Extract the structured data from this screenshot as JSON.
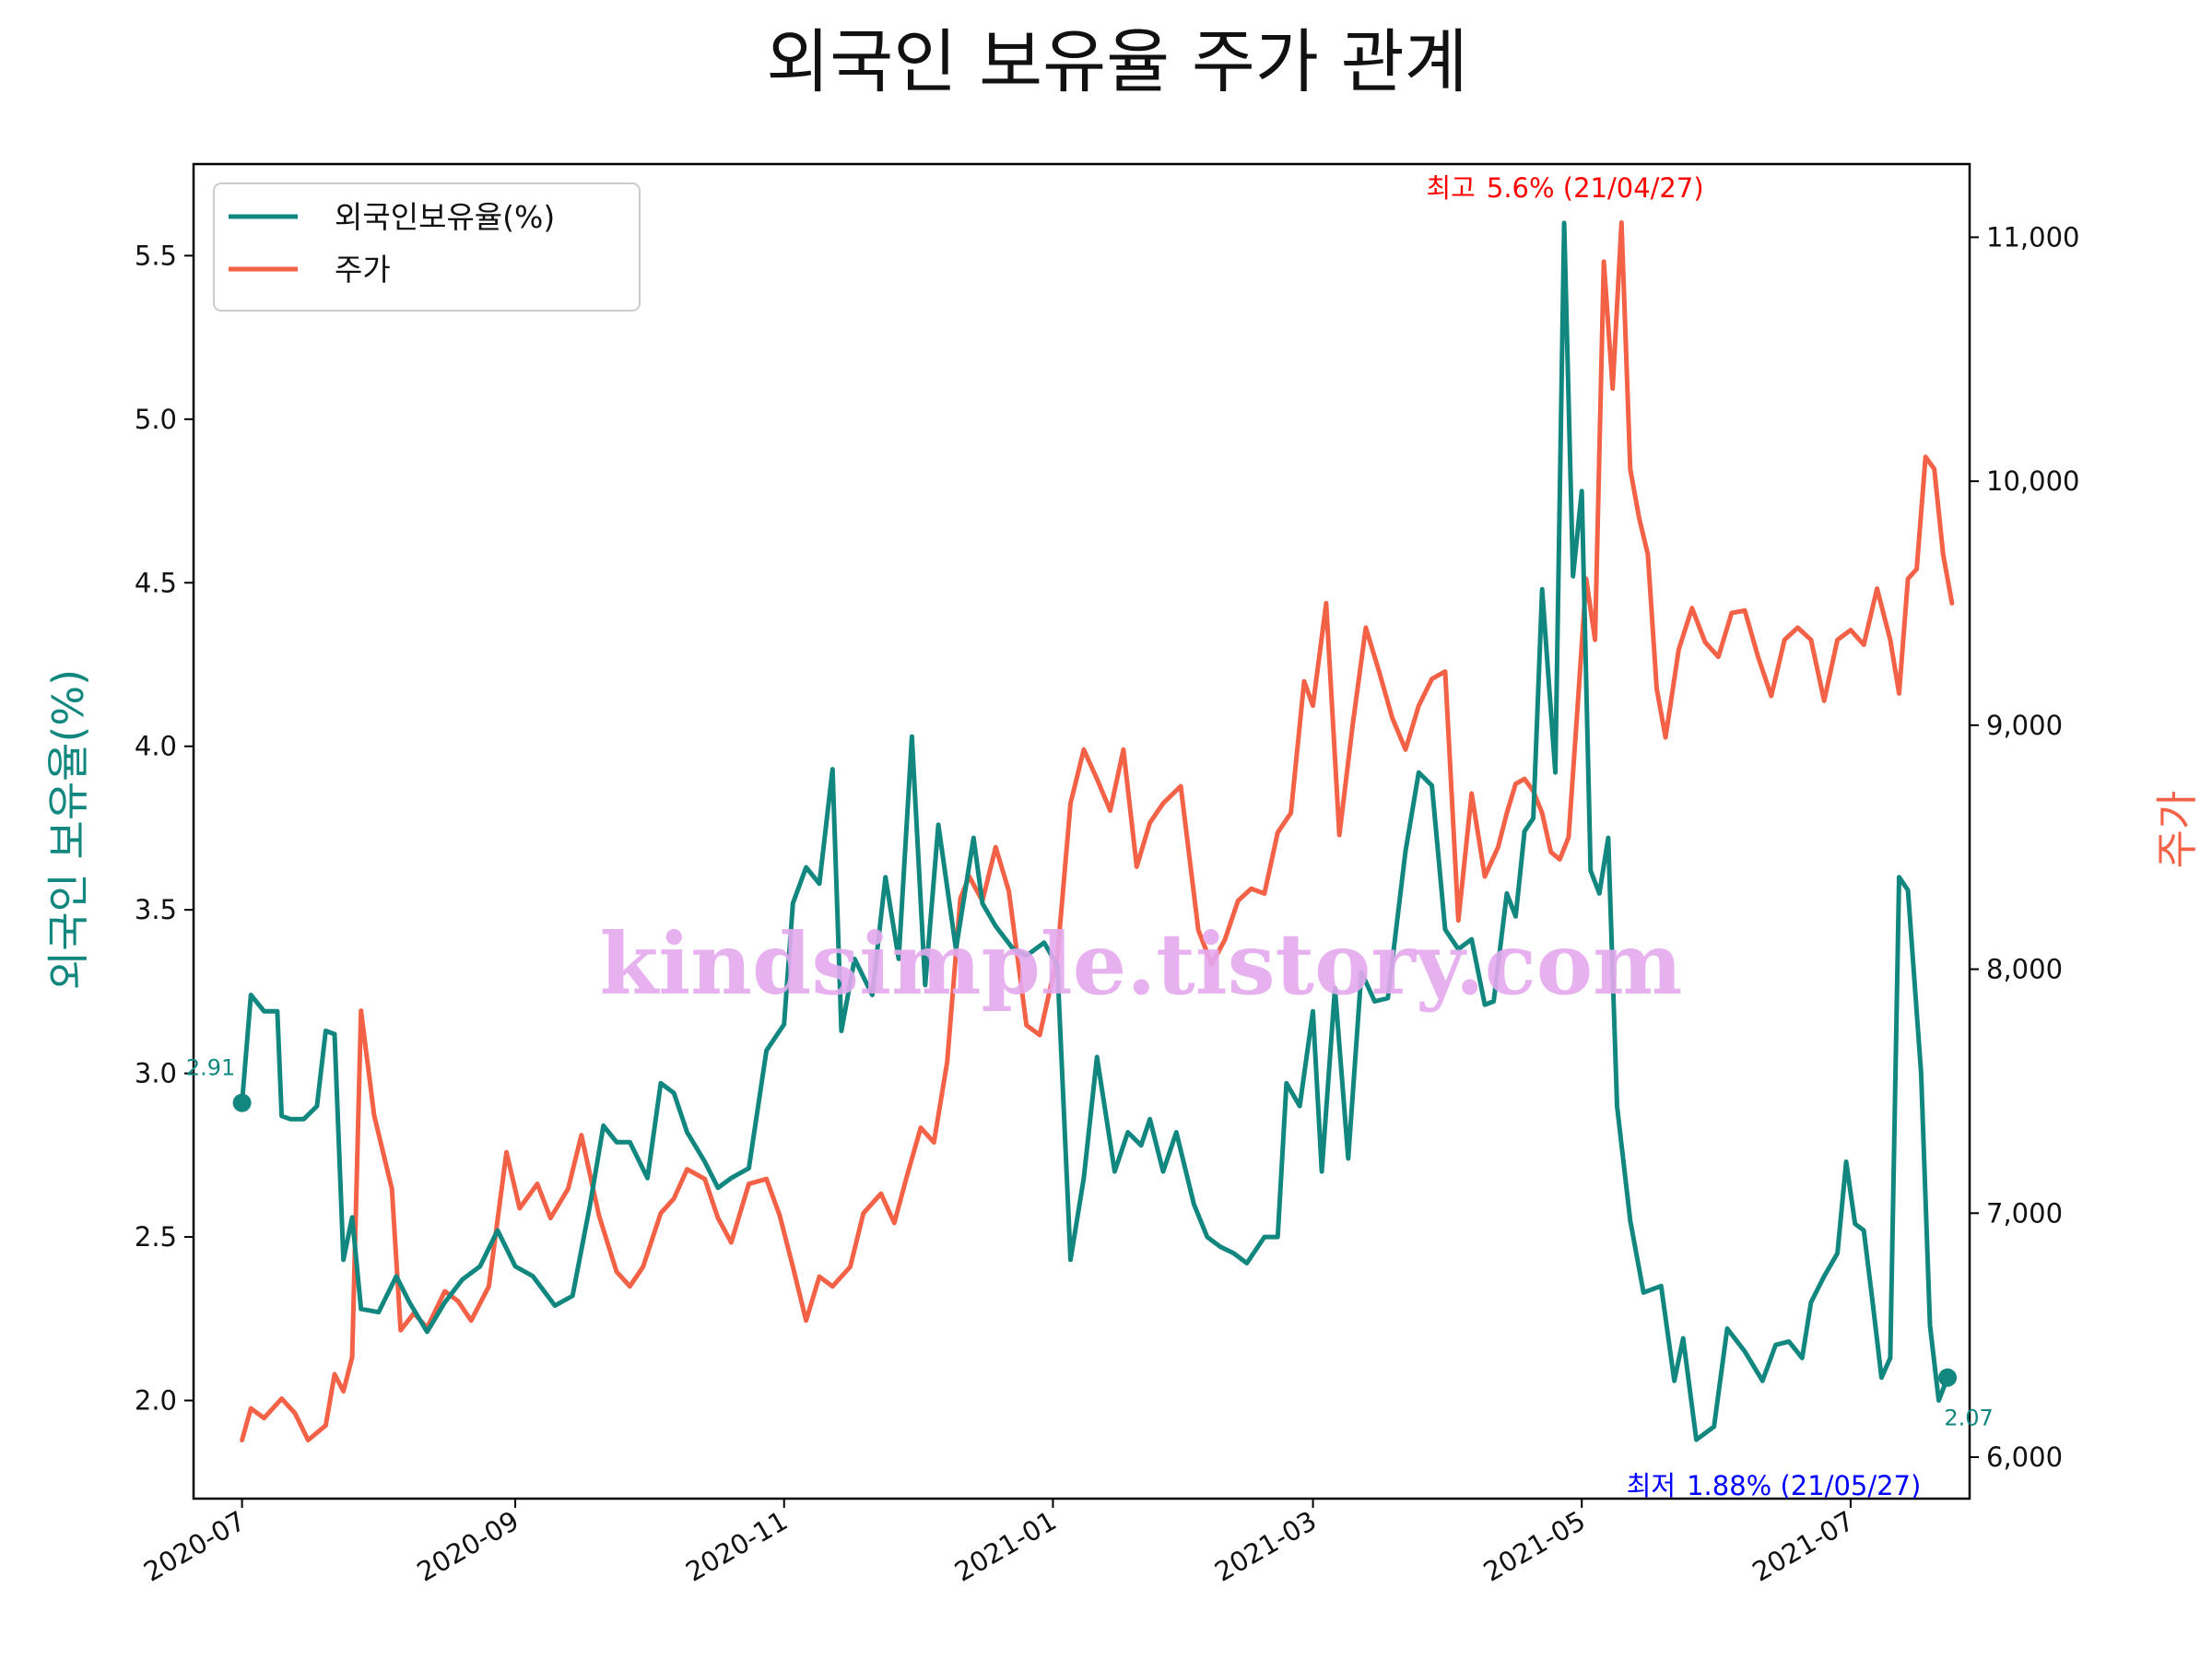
{
  "chart_data": {
    "type": "line",
    "title": "외국인 보유율 주가 관계",
    "ylabel_left": "외국인 보유율(%)",
    "ylabel_right": "주가",
    "watermark": "kindsimple.tistory.com",
    "legend": {
      "position": "upper-left",
      "entries": [
        "외국인보유율(%)",
        "주가"
      ]
    },
    "x_ticks": [
      "2020-07",
      "2020-09",
      "2020-11",
      "2021-01",
      "2021-03",
      "2021-05",
      "2021-07"
    ],
    "x_range": [
      "2020-06-20",
      "2021-07-28"
    ],
    "ylim_left": [
      1.7,
      5.78
    ],
    "left_ticks": [
      "2.0",
      "2.5",
      "3.0",
      "3.5",
      "4.0",
      "4.5",
      "5.0",
      "5.5"
    ],
    "ylim_right": [
      5830,
      11300
    ],
    "right_ticks": [
      "6,000",
      "7,000",
      "8,000",
      "9,000",
      "10,000",
      "11,000"
    ],
    "colors": {
      "foreign": "#12877f",
      "price": "#f36146",
      "max": "#ff0000",
      "min": "#0000ff"
    },
    "series": [
      {
        "name": "외국인보유율(%)",
        "axis": "left",
        "points": [
          [
            "2020-07-01",
            2.91
          ],
          [
            "2020-07-03",
            3.24
          ],
          [
            "2020-07-06",
            3.19
          ],
          [
            "2020-07-09",
            3.19
          ],
          [
            "2020-07-10",
            2.87
          ],
          [
            "2020-07-12",
            2.86
          ],
          [
            "2020-07-15",
            2.86
          ],
          [
            "2020-07-18",
            2.9
          ],
          [
            "2020-07-20",
            3.13
          ],
          [
            "2020-07-22",
            3.12
          ],
          [
            "2020-07-24",
            2.43
          ],
          [
            "2020-07-26",
            2.56
          ],
          [
            "2020-07-28",
            2.28
          ],
          [
            "2020-08-01",
            2.27
          ],
          [
            "2020-08-05",
            2.38
          ],
          [
            "2020-08-08",
            2.3
          ],
          [
            "2020-08-12",
            2.21
          ],
          [
            "2020-08-16",
            2.3
          ],
          [
            "2020-08-20",
            2.37
          ],
          [
            "2020-08-24",
            2.41
          ],
          [
            "2020-08-28",
            2.52
          ],
          [
            "2020-09-01",
            2.41
          ],
          [
            "2020-09-05",
            2.38
          ],
          [
            "2020-09-10",
            2.29
          ],
          [
            "2020-09-14",
            2.32
          ],
          [
            "2020-09-18",
            2.6
          ],
          [
            "2020-09-21",
            2.84
          ],
          [
            "2020-09-24",
            2.79
          ],
          [
            "2020-09-27",
            2.79
          ],
          [
            "2020-10-01",
            2.68
          ],
          [
            "2020-10-04",
            2.97
          ],
          [
            "2020-10-07",
            2.94
          ],
          [
            "2020-10-10",
            2.82
          ],
          [
            "2020-10-14",
            2.73
          ],
          [
            "2020-10-17",
            2.65
          ],
          [
            "2020-10-20",
            2.68
          ],
          [
            "2020-10-24",
            2.71
          ],
          [
            "2020-10-28",
            3.07
          ],
          [
            "2020-11-01",
            3.15
          ],
          [
            "2020-11-03",
            3.52
          ],
          [
            "2020-11-06",
            3.63
          ],
          [
            "2020-11-09",
            3.58
          ],
          [
            "2020-11-12",
            3.93
          ],
          [
            "2020-11-14",
            3.13
          ],
          [
            "2020-11-17",
            3.35
          ],
          [
            "2020-11-21",
            3.24
          ],
          [
            "2020-11-24",
            3.6
          ],
          [
            "2020-11-27",
            3.35
          ],
          [
            "2020-11-30",
            4.03
          ],
          [
            "2020-12-03",
            3.27
          ],
          [
            "2020-12-06",
            3.76
          ],
          [
            "2020-12-10",
            3.38
          ],
          [
            "2020-12-14",
            3.72
          ],
          [
            "2020-12-16",
            3.52
          ],
          [
            "2020-12-19",
            3.45
          ],
          [
            "2020-12-23",
            3.38
          ],
          [
            "2020-12-26",
            3.36
          ],
          [
            "2020-12-30",
            3.4
          ],
          [
            "2021-01-02",
            3.33
          ],
          [
            "2021-01-05",
            2.43
          ],
          [
            "2021-01-08",
            2.68
          ],
          [
            "2021-01-11",
            3.05
          ],
          [
            "2021-01-15",
            2.7
          ],
          [
            "2021-01-18",
            2.82
          ],
          [
            "2021-01-21",
            2.78
          ],
          [
            "2021-01-23",
            2.86
          ],
          [
            "2021-01-26",
            2.7
          ],
          [
            "2021-01-29",
            2.82
          ],
          [
            "2021-02-02",
            2.6
          ],
          [
            "2021-02-05",
            2.5
          ],
          [
            "2021-02-08",
            2.47
          ],
          [
            "2021-02-11",
            2.45
          ],
          [
            "2021-02-14",
            2.42
          ],
          [
            "2021-02-18",
            2.5
          ],
          [
            "2021-02-21",
            2.5
          ],
          [
            "2021-02-23",
            2.97
          ],
          [
            "2021-02-26",
            2.9
          ],
          [
            "2021-03-01",
            3.19
          ],
          [
            "2021-03-03",
            2.7
          ],
          [
            "2021-03-06",
            3.26
          ],
          [
            "2021-03-09",
            2.74
          ],
          [
            "2021-03-12",
            3.31
          ],
          [
            "2021-03-15",
            3.22
          ],
          [
            "2021-03-18",
            3.23
          ],
          [
            "2021-03-22",
            3.68
          ],
          [
            "2021-03-25",
            3.92
          ],
          [
            "2021-03-28",
            3.88
          ],
          [
            "2021-03-31",
            3.44
          ],
          [
            "2021-04-03",
            3.38
          ],
          [
            "2021-04-06",
            3.41
          ],
          [
            "2021-04-09",
            3.21
          ],
          [
            "2021-04-11",
            3.22
          ],
          [
            "2021-04-14",
            3.55
          ],
          [
            "2021-04-16",
            3.48
          ],
          [
            "2021-04-18",
            3.74
          ],
          [
            "2021-04-20",
            3.78
          ],
          [
            "2021-04-22",
            4.48
          ],
          [
            "2021-04-25",
            3.92
          ],
          [
            "2021-04-27",
            5.6
          ],
          [
            "2021-04-29",
            4.52
          ],
          [
            "2021-05-01",
            4.78
          ],
          [
            "2021-05-03",
            3.62
          ],
          [
            "2021-05-05",
            3.55
          ],
          [
            "2021-05-07",
            3.72
          ],
          [
            "2021-05-09",
            2.9
          ],
          [
            "2021-05-12",
            2.55
          ],
          [
            "2021-05-15",
            2.33
          ],
          [
            "2021-05-19",
            2.35
          ],
          [
            "2021-05-22",
            2.06
          ],
          [
            "2021-05-24",
            2.19
          ],
          [
            "2021-05-27",
            1.88
          ],
          [
            "2021-05-31",
            1.92
          ],
          [
            "2021-06-03",
            2.22
          ],
          [
            "2021-06-07",
            2.15
          ],
          [
            "2021-06-11",
            2.06
          ],
          [
            "2021-06-14",
            2.17
          ],
          [
            "2021-06-17",
            2.18
          ],
          [
            "2021-06-20",
            2.13
          ],
          [
            "2021-06-22",
            2.3
          ],
          [
            "2021-06-25",
            2.38
          ],
          [
            "2021-06-28",
            2.45
          ],
          [
            "2021-06-30",
            2.73
          ],
          [
            "2021-07-02",
            2.54
          ],
          [
            "2021-07-04",
            2.52
          ],
          [
            "2021-07-06",
            2.3
          ],
          [
            "2021-07-08",
            2.07
          ],
          [
            "2021-07-10",
            2.13
          ],
          [
            "2021-07-12",
            3.6
          ],
          [
            "2021-07-14",
            3.56
          ],
          [
            "2021-07-17",
            3.0
          ],
          [
            "2021-07-19",
            2.23
          ],
          [
            "2021-07-21",
            2.0
          ],
          [
            "2021-07-23",
            2.07
          ]
        ]
      },
      {
        "name": "주가",
        "axis": "right",
        "points": [
          [
            "2020-07-01",
            6070
          ],
          [
            "2020-07-03",
            6200
          ],
          [
            "2020-07-06",
            6160
          ],
          [
            "2020-07-10",
            6240
          ],
          [
            "2020-07-13",
            6180
          ],
          [
            "2020-07-16",
            6070
          ],
          [
            "2020-07-20",
            6130
          ],
          [
            "2020-07-22",
            6340
          ],
          [
            "2020-07-24",
            6270
          ],
          [
            "2020-07-26",
            6410
          ],
          [
            "2020-07-28",
            7830
          ],
          [
            "2020-07-31",
            7400
          ],
          [
            "2020-08-04",
            7100
          ],
          [
            "2020-08-06",
            6520
          ],
          [
            "2020-08-09",
            6590
          ],
          [
            "2020-08-12",
            6530
          ],
          [
            "2020-08-16",
            6680
          ],
          [
            "2020-08-19",
            6640
          ],
          [
            "2020-08-22",
            6560
          ],
          [
            "2020-08-26",
            6700
          ],
          [
            "2020-08-30",
            7250
          ],
          [
            "2020-09-02",
            7020
          ],
          [
            "2020-09-06",
            7120
          ],
          [
            "2020-09-09",
            6980
          ],
          [
            "2020-09-13",
            7100
          ],
          [
            "2020-09-16",
            7320
          ],
          [
            "2020-09-20",
            6990
          ],
          [
            "2020-09-24",
            6760
          ],
          [
            "2020-09-27",
            6700
          ],
          [
            "2020-09-30",
            6780
          ],
          [
            "2020-10-04",
            7000
          ],
          [
            "2020-10-07",
            7060
          ],
          [
            "2020-10-10",
            7180
          ],
          [
            "2020-10-14",
            7140
          ],
          [
            "2020-10-17",
            6980
          ],
          [
            "2020-10-20",
            6880
          ],
          [
            "2020-10-24",
            7120
          ],
          [
            "2020-10-28",
            7140
          ],
          [
            "2020-10-31",
            6990
          ],
          [
            "2020-11-03",
            6780
          ],
          [
            "2020-11-06",
            6560
          ],
          [
            "2020-11-09",
            6740
          ],
          [
            "2020-11-12",
            6700
          ],
          [
            "2020-11-16",
            6780
          ],
          [
            "2020-11-19",
            7000
          ],
          [
            "2020-11-23",
            7080
          ],
          [
            "2020-11-26",
            6960
          ],
          [
            "2020-11-29",
            7160
          ],
          [
            "2020-12-02",
            7350
          ],
          [
            "2020-12-05",
            7290
          ],
          [
            "2020-12-08",
            7620
          ],
          [
            "2020-12-11",
            8290
          ],
          [
            "2020-12-13",
            8380
          ],
          [
            "2020-12-16",
            8280
          ],
          [
            "2020-12-19",
            8500
          ],
          [
            "2020-12-22",
            8320
          ],
          [
            "2020-12-26",
            7770
          ],
          [
            "2020-12-29",
            7730
          ],
          [
            "2021-01-02",
            8050
          ],
          [
            "2021-01-05",
            8680
          ],
          [
            "2021-01-08",
            8900
          ],
          [
            "2021-01-11",
            8780
          ],
          [
            "2021-01-14",
            8650
          ],
          [
            "2021-01-17",
            8900
          ],
          [
            "2021-01-20",
            8420
          ],
          [
            "2021-01-23",
            8600
          ],
          [
            "2021-01-26",
            8680
          ],
          [
            "2021-01-30",
            8750
          ],
          [
            "2021-02-03",
            8160
          ],
          [
            "2021-02-06",
            8020
          ],
          [
            "2021-02-09",
            8120
          ],
          [
            "2021-02-12",
            8280
          ],
          [
            "2021-02-15",
            8330
          ],
          [
            "2021-02-18",
            8310
          ],
          [
            "2021-02-21",
            8560
          ],
          [
            "2021-02-24",
            8640
          ],
          [
            "2021-02-27",
            9180
          ],
          [
            "2021-03-01",
            9080
          ],
          [
            "2021-03-04",
            9500
          ],
          [
            "2021-03-07",
            8550
          ],
          [
            "2021-03-10",
            9000
          ],
          [
            "2021-03-13",
            9400
          ],
          [
            "2021-03-16",
            9220
          ],
          [
            "2021-03-19",
            9030
          ],
          [
            "2021-03-22",
            8900
          ],
          [
            "2021-03-25",
            9080
          ],
          [
            "2021-03-28",
            9190
          ],
          [
            "2021-03-31",
            9220
          ],
          [
            "2021-04-03",
            8200
          ],
          [
            "2021-04-06",
            8720
          ],
          [
            "2021-04-09",
            8380
          ],
          [
            "2021-04-12",
            8500
          ],
          [
            "2021-04-14",
            8640
          ],
          [
            "2021-04-16",
            8760
          ],
          [
            "2021-04-18",
            8780
          ],
          [
            "2021-04-20",
            8730
          ],
          [
            "2021-04-22",
            8640
          ],
          [
            "2021-04-24",
            8480
          ],
          [
            "2021-04-26",
            8450
          ],
          [
            "2021-04-28",
            8540
          ],
          [
            "2021-04-30",
            9060
          ],
          [
            "2021-05-02",
            9600
          ],
          [
            "2021-05-04",
            9350
          ],
          [
            "2021-05-06",
            10900
          ],
          [
            "2021-05-08",
            10380
          ],
          [
            "2021-05-10",
            11060
          ],
          [
            "2021-05-12",
            10050
          ],
          [
            "2021-05-14",
            9850
          ],
          [
            "2021-05-16",
            9700
          ],
          [
            "2021-05-18",
            9150
          ],
          [
            "2021-05-20",
            8950
          ],
          [
            "2021-05-23",
            9310
          ],
          [
            "2021-05-26",
            9480
          ],
          [
            "2021-05-29",
            9340
          ],
          [
            "2021-06-01",
            9280
          ],
          [
            "2021-06-04",
            9460
          ],
          [
            "2021-06-07",
            9470
          ],
          [
            "2021-06-10",
            9280
          ],
          [
            "2021-06-13",
            9120
          ],
          [
            "2021-06-16",
            9350
          ],
          [
            "2021-06-19",
            9400
          ],
          [
            "2021-06-22",
            9350
          ],
          [
            "2021-06-25",
            9100
          ],
          [
            "2021-06-28",
            9350
          ],
          [
            "2021-07-01",
            9390
          ],
          [
            "2021-07-04",
            9330
          ],
          [
            "2021-07-07",
            9560
          ],
          [
            "2021-07-10",
            9350
          ],
          [
            "2021-07-12",
            9130
          ],
          [
            "2021-07-14",
            9600
          ],
          [
            "2021-07-16",
            9640
          ],
          [
            "2021-07-18",
            10100
          ],
          [
            "2021-07-20",
            10050
          ],
          [
            "2021-07-22",
            9700
          ],
          [
            "2021-07-24",
            9500
          ]
        ]
      }
    ],
    "annotations": {
      "max": {
        "label": "최고",
        "value_text": "5.6% (21/04/27)",
        "date": "2021-04-27",
        "value": 5.6
      },
      "min": {
        "label": "최저",
        "value_text": "1.88% (21/05/27)",
        "date": "2021-05-27",
        "value": 1.88
      },
      "start": {
        "text": "2.91",
        "date": "2020-07-01",
        "value": 2.91
      },
      "end": {
        "text": "2.07",
        "date": "2021-07-23",
        "value": 2.07
      }
    }
  }
}
